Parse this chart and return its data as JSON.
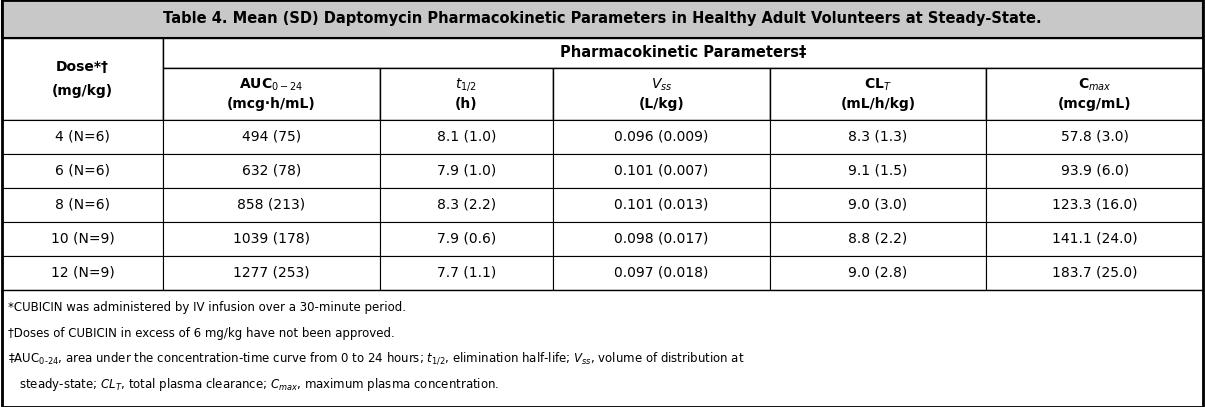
{
  "title": "Table 4. Mean (SD) Daptomycin Pharmacokinetic Parameters in Healthy Adult Volunteers at Steady-State.",
  "pk_header": "Pharmacokinetic Parameters‡",
  "col_h1": [
    "Dose*†",
    "AUC$_{0\\text{-}24}$",
    "$t_{1/2}$",
    "$V_{ss}$",
    "$CL_T$",
    "$C_{max}$"
  ],
  "col_h2": [
    "(mg/kg)",
    "(mcg·h/mL)",
    "(h)",
    "(L/kg)",
    "(mL/h/kg)",
    "(mcg/mL)"
  ],
  "rows": [
    [
      "4 (N=6)",
      "494 (75)",
      "8.1 (1.0)",
      "0.096 (0.009)",
      "8.3 (1.3)",
      "57.8 (3.0)"
    ],
    [
      "6 (N=6)",
      "632 (78)",
      "7.9 (1.0)",
      "0.101 (0.007)",
      "9.1 (1.5)",
      "93.9 (6.0)"
    ],
    [
      "8 (N=6)",
      "858 (213)",
      "8.3 (2.2)",
      "0.101 (0.013)",
      "9.0 (3.0)",
      "123.3 (16.0)"
    ],
    [
      "10 (N=9)",
      "1039 (178)",
      "7.9 (0.6)",
      "0.098 (0.017)",
      "8.8 (2.2)",
      "141.1 (24.0)"
    ],
    [
      "12 (N=9)",
      "1277 (253)",
      "7.7 (1.1)",
      "0.097 (0.018)",
      "9.0 (2.8)",
      "183.7 (25.0)"
    ]
  ],
  "fn1": "*CUBICIN was administered by IV infusion over a 30-minute period.",
  "fn2": "†Doses of CUBICIN in excess of 6 mg/kg have not been approved.",
  "fn3a": "‡AUC$_{0\\text{-}24}$, area under the concentration-time curve from 0 to 24 hours; $t_{1/2}$, elimination half-life; $V_{ss}$, volume of distribution at",
  "fn3b": "   steady-state; $CL_T$, total plasma clearance; $C_{max}$, maximum plasma concentration.",
  "title_bg": "#c8c8c8",
  "header_bg": "#ffffff",
  "data_bg": "#ffffff",
  "border_color": "#000000"
}
